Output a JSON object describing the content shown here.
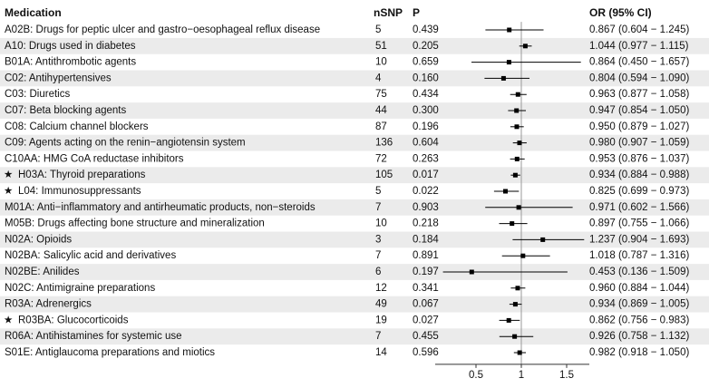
{
  "chart_data": {
    "type": "forest",
    "headers": {
      "medication": "Medication",
      "nsnp": "nSNP",
      "p": "P",
      "or": "OR (95% CI)"
    },
    "categories": [
      "A02B: Drugs for peptic ulcer and gastro−oesophageal reflux disease",
      "A10: Drugs used in diabetes",
      "B01A: Antithrombotic agents",
      "C02: Antihypertensives",
      "C03: Diuretics",
      "C07: Beta blocking agents",
      "C08: Calcium channel blockers",
      "C09: Agents acting on the renin−angiotensin system",
      "C10AA: HMG CoA reductase inhibitors",
      "H03A: Thyroid preparations",
      "L04: Immunosuppressants",
      "M01A: Anti−inflammatory and antirheumatic products, non−steroids",
      "M05B: Drugs affecting bone structure and mineralization",
      "N02A: Opioids",
      "N02BA: Salicylic acid and derivatives",
      "N02BE: Anilides",
      "N02C: Antimigraine preparations",
      "R03A: Adrenergics",
      "R03BA: Glucocorticoids",
      "R06A: Antihistamines for systemic use",
      "S01E: Antiglaucoma preparations and miotics"
    ],
    "highlight": [
      false,
      false,
      false,
      false,
      false,
      false,
      false,
      false,
      false,
      true,
      true,
      false,
      false,
      false,
      false,
      false,
      false,
      false,
      true,
      false,
      false
    ],
    "nsnp": [
      5,
      51,
      10,
      4,
      75,
      44,
      87,
      136,
      72,
      105,
      5,
      7,
      10,
      3,
      7,
      6,
      12,
      49,
      19,
      7,
      14
    ],
    "p": [
      "0.439",
      "0.205",
      "0.659",
      "0.160",
      "0.434",
      "0.300",
      "0.196",
      "0.604",
      "0.263",
      "0.017",
      "0.022",
      "0.903",
      "0.218",
      "0.184",
      "0.891",
      "0.197",
      "0.341",
      "0.067",
      "0.027",
      "0.455",
      "0.596"
    ],
    "values": [
      0.867,
      1.044,
      0.864,
      0.804,
      0.963,
      0.947,
      0.95,
      0.98,
      0.953,
      0.934,
      0.825,
      0.971,
      0.897,
      1.237,
      1.018,
      0.453,
      0.96,
      0.934,
      0.862,
      0.926,
      0.982
    ],
    "lower": [
      0.604,
      0.977,
      0.45,
      0.594,
      0.877,
      0.854,
      0.879,
      0.907,
      0.876,
      0.884,
      0.699,
      0.602,
      0.755,
      0.904,
      0.787,
      0.136,
      0.884,
      0.869,
      0.756,
      0.758,
      0.918
    ],
    "upper": [
      1.245,
      1.115,
      1.657,
      1.09,
      1.058,
      1.05,
      1.027,
      1.059,
      1.037,
      0.988,
      0.973,
      1.566,
      1.066,
      1.693,
      1.316,
      1.509,
      1.044,
      1.005,
      0.983,
      1.132,
      1.05
    ],
    "value_labels": [
      "0.867 (0.604 − 1.245)",
      "1.044 (0.977 − 1.115)",
      "0.864 (0.450 − 1.657)",
      "0.804 (0.594 − 1.090)",
      "0.963 (0.877 − 1.058)",
      "0.947 (0.854 − 1.050)",
      "0.950 (0.879 − 1.027)",
      "0.980 (0.907 − 1.059)",
      "0.953 (0.876 − 1.037)",
      "0.934 (0.884 − 0.988)",
      "0.825 (0.699 − 0.973)",
      "0.971 (0.602 − 1.566)",
      "0.897 (0.755 − 1.066)",
      "1.237 (0.904 − 1.693)",
      "1.018 (0.787 − 1.316)",
      "0.453 (0.136 − 1.509)",
      "0.960 (0.884 − 1.044)",
      "0.934 (0.869 − 1.005)",
      "0.862 (0.756 − 0.983)",
      "0.926 (0.758 − 1.132)",
      "0.982 (0.918 − 1.050)"
    ],
    "reference": 1,
    "xlim": [
      0.05,
      1.75
    ],
    "xticks": [
      0.5,
      1,
      1.5
    ],
    "color": "#000000",
    "band_color": "#ebebeb"
  }
}
